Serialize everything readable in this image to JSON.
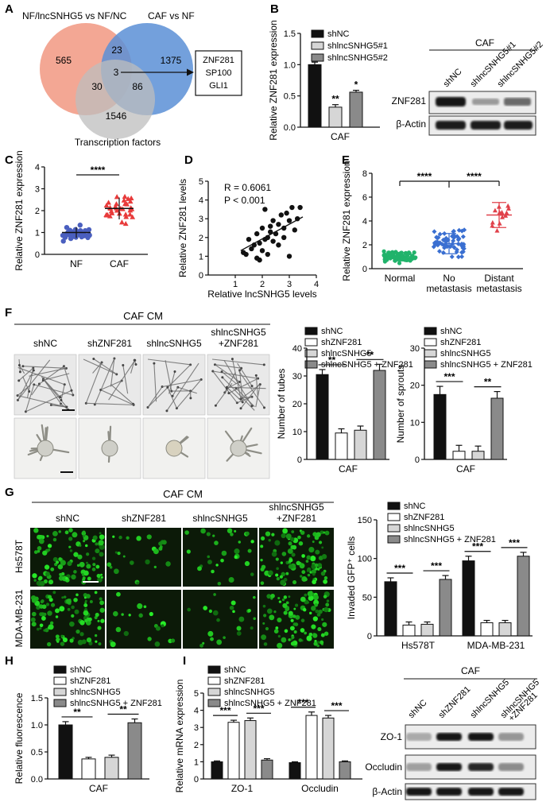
{
  "panel_letters": [
    "A",
    "B",
    "C",
    "D",
    "E",
    "F",
    "G",
    "H",
    "I"
  ],
  "colors": {
    "black": "#111111",
    "white": "#ffffff",
    "light_gray": "#d6d6d6",
    "dark_gray": "#8a8a8a",
    "venn_red": "#f2a28e",
    "venn_blue": "#5b8fd6",
    "venn_gray": "#bdbdbd",
    "nf_blue": "#4a5fbf",
    "caf_red": "#e83a3a",
    "normal_green": "#21b36b",
    "nometa_blue": "#3a6fd1",
    "distant_red": "#e0414a"
  },
  "panel_a": {
    "sets": [
      "NF/lncSNHG5 vs NF/NC",
      "CAF vs NF",
      "Transcription factors"
    ],
    "counts": {
      "red_only": "565",
      "red_blue": "23",
      "blue_only": "1375",
      "center": "3",
      "red_gray": "30",
      "blue_gray": "86",
      "gray_only": "1546"
    },
    "genes": [
      "ZNF281",
      "SP100",
      "GLI1"
    ]
  },
  "panel_b": {
    "chart_data": {
      "type": "bar",
      "ylabel": "Relative  ZNF281 expression",
      "xlabel": "CAF",
      "ylim": [
        0,
        1.5
      ],
      "yticks": [
        "0.0",
        "0.5",
        "1.0",
        "1.5"
      ],
      "series": [
        {
          "name": "shNC",
          "value": 1.0,
          "err": 0.04
        },
        {
          "name": "shlncSNHG5#1",
          "value": 0.32,
          "err": 0.04
        },
        {
          "name": "shlncSNHG5#2",
          "value": 0.56,
          "err": 0.03
        }
      ],
      "sig": [
        "**",
        "*"
      ]
    },
    "blot": {
      "title": "CAF",
      "lanes": [
        "shNC",
        "shlncSNHG5#1",
        "shlncSNHG5#2"
      ],
      "rows": [
        "ZNF281",
        "β-Actin"
      ]
    }
  },
  "panel_c": {
    "chart_data": {
      "type": "scatter",
      "ylabel": "Relative  ZNF281 expression",
      "ylim": [
        0,
        4
      ],
      "yticks": [
        "0",
        "1",
        "2",
        "3",
        "4"
      ],
      "groups": [
        "NF",
        "CAF"
      ],
      "means": [
        1.0,
        2.1
      ],
      "sd": [
        0.25,
        0.5
      ],
      "sig": "****"
    }
  },
  "panel_d": {
    "chart_data": {
      "type": "scatter",
      "xlabel": "Relative lncSNHG5 levels",
      "ylabel": "Relative ZNF281 levels",
      "xlim": [
        0,
        4
      ],
      "ylim": [
        0,
        5
      ],
      "xticks": [
        "1",
        "2",
        "3",
        "4"
      ],
      "yticks": [
        "0",
        "1",
        "2",
        "3",
        "4",
        "5"
      ],
      "stats": [
        "R = 0.6061",
        "P < 0.001"
      ],
      "points": [
        [
          1.4,
          1.1
        ],
        [
          1.5,
          1.9
        ],
        [
          1.6,
          1.4
        ],
        [
          1.7,
          1.6
        ],
        [
          1.8,
          0.9
        ],
        [
          1.8,
          2.2
        ],
        [
          1.9,
          0.8
        ],
        [
          1.9,
          1.7
        ],
        [
          2.0,
          2.5
        ],
        [
          2.0,
          1.3
        ],
        [
          2.1,
          3.5
        ],
        [
          2.1,
          1.9
        ],
        [
          2.2,
          2.0
        ],
        [
          2.2,
          1.1
        ],
        [
          2.3,
          2.6
        ],
        [
          2.3,
          2.3
        ],
        [
          2.4,
          1.8
        ],
        [
          2.4,
          2.9
        ],
        [
          2.5,
          2.2
        ],
        [
          2.6,
          2.7
        ],
        [
          2.6,
          1.6
        ],
        [
          2.7,
          3.2
        ],
        [
          2.8,
          2.0
        ],
        [
          2.9,
          3.3
        ],
        [
          3.0,
          2.9
        ],
        [
          3.0,
          1.0
        ],
        [
          3.1,
          3.6
        ],
        [
          3.2,
          2.4
        ],
        [
          3.3,
          3.0
        ],
        [
          3.4,
          3.6
        ],
        [
          1.3,
          1.2
        ],
        [
          2.8,
          2.5
        ]
      ],
      "fit": [
        [
          1.2,
          1.3
        ],
        [
          3.5,
          3.1
        ]
      ]
    }
  },
  "panel_e": {
    "chart_data": {
      "type": "scatter",
      "ylabel": "Relative  ZNF281 expression",
      "ylim": [
        0,
        8
      ],
      "yticks": [
        "0",
        "2",
        "4",
        "6",
        "8"
      ],
      "groups": [
        "Normal",
        "No\nmetastasis",
        "Distant\nmetastasis"
      ],
      "group_lines": [
        [
          "Normal"
        ],
        [
          "No",
          "metastasis"
        ],
        [
          "Distant",
          "metastasis"
        ]
      ],
      "means": [
        1.0,
        2.1,
        4.5
      ],
      "sd": [
        0.35,
        0.85,
        1.05
      ],
      "sig": [
        "****",
        "****"
      ]
    }
  },
  "panel_f": {
    "title": "CAF CM",
    "cols": [
      "shNC",
      "shZNF281",
      "shlncSNHG5",
      "shlncSNHG5\n+ZNF281"
    ],
    "col_lines": [
      [
        "shNC"
      ],
      [
        "shZNF281"
      ],
      [
        "shlncSNHG5"
      ],
      [
        "shlncSNHG5",
        "+ZNF281"
      ]
    ],
    "legend": [
      "shNC",
      "shZNF281",
      "shlncSNHG5",
      "shlncSNHG5 + ZNF281"
    ],
    "tubes": {
      "chart_data": {
        "type": "bar",
        "ylabel": "Number of tubes",
        "xlabel": "CAF",
        "ylim": [
          0,
          40
        ],
        "yticks": [
          "0",
          "10",
          "20",
          "30",
          "40"
        ],
        "values": [
          30.5,
          9.5,
          10.5,
          32
        ],
        "err": [
          1.8,
          1.5,
          1.5,
          2.2
        ],
        "sig": [
          "**",
          "**"
        ]
      }
    },
    "sprouts": {
      "chart_data": {
        "type": "bar",
        "ylabel": "Number of sprouts",
        "xlabel": "CAF",
        "ylim": [
          0,
          30
        ],
        "yticks": [
          "0",
          "10",
          "20",
          "30"
        ],
        "values": [
          17.5,
          2.2,
          2.2,
          16.5
        ],
        "err": [
          2.2,
          1.6,
          1.4,
          1.8
        ],
        "sig": [
          "***",
          "**"
        ]
      }
    }
  },
  "panel_g": {
    "title": "CAF CM",
    "cols": [
      "shNC",
      "shZNF281",
      "shlncSNHG5",
      "shlncSNHG5\n+ZNF281"
    ],
    "col_lines": [
      [
        "shNC"
      ],
      [
        "shZNF281"
      ],
      [
        "shlncSNHG5"
      ],
      [
        "shlncSNHG5",
        "+ZNF281"
      ]
    ],
    "rows": [
      "Hs578T",
      "MDA-MB-231"
    ],
    "legend": [
      "shNC",
      "shZNF281",
      "shlncSNHG5",
      "shlncSNHG5 + ZNF281"
    ],
    "chart_data": {
      "type": "bar",
      "ylabel": "Invaded GFP⁺ cells",
      "ylim": [
        0,
        150
      ],
      "yticks": [
        "0",
        "50",
        "100",
        "150"
      ],
      "categories": [
        "Hs578T",
        "MDA-MB-231"
      ],
      "series": [
        {
          "name": "shNC",
          "values": [
            70,
            97
          ]
        },
        {
          "name": "shZNF281",
          "values": [
            14,
            17
          ]
        },
        {
          "name": "shlncSNHG5",
          "values": [
            15,
            17
          ]
        },
        {
          "name": "shlncSNHG5 + ZNF281",
          "values": [
            73,
            103
          ]
        }
      ],
      "err": [
        [
          5,
          4,
          3,
          5
        ],
        [
          6,
          3,
          3,
          5
        ]
      ],
      "sig": [
        "***",
        "***",
        "***",
        "***"
      ]
    }
  },
  "panel_h": {
    "legend": [
      "shNC",
      "shZNF281",
      "shlncSNHG5",
      "shlncSNHG5 + ZNF281"
    ],
    "chart_data": {
      "type": "bar",
      "ylabel": "Relative  fluorescence",
      "xlabel": "CAF",
      "ylim": [
        0,
        1.5
      ],
      "yticks": [
        "0.0",
        "0.5",
        "1.0",
        "1.5"
      ],
      "values": [
        1.0,
        0.37,
        0.4,
        1.04
      ],
      "err": [
        0.06,
        0.03,
        0.04,
        0.07
      ],
      "sig": [
        "**",
        "**"
      ]
    }
  },
  "panel_i": {
    "legend": [
      "shNC",
      "shZNF281",
      "shlncSNHG5",
      "shlncSNHG5 + ZNF281"
    ],
    "chart_data": {
      "type": "bar",
      "ylabel": "Relative mRNA expression",
      "ylim": [
        0,
        5
      ],
      "yticks": [
        "0",
        "1",
        "2",
        "3",
        "4",
        "5"
      ],
      "categories": [
        "ZO-1",
        "Occludin"
      ],
      "series": [
        {
          "name": "shNC",
          "values": [
            1.0,
            0.95
          ]
        },
        {
          "name": "shZNF281",
          "values": [
            3.3,
            3.7
          ]
        },
        {
          "name": "shlncSNHG5",
          "values": [
            3.4,
            3.55
          ]
        },
        {
          "name": "shlncSNHG5 + ZNF281",
          "values": [
            1.1,
            1.0
          ]
        }
      ],
      "err": [
        [
          0.05,
          0.12,
          0.15,
          0.08
        ],
        [
          0.05,
          0.2,
          0.15,
          0.05
        ]
      ],
      "sig": [
        "***",
        "***",
        "***",
        "***"
      ]
    },
    "blot": {
      "title": "CAF",
      "lanes": [
        "shNC",
        "shZNF281",
        "shlncSNHG5",
        "shlncSNHG5\n+ZNF281"
      ],
      "lane_lines": [
        [
          "shNC"
        ],
        [
          "shZNF281"
        ],
        [
          "shlncSNHG5"
        ],
        [
          "shlncSNHG5",
          "+ZNF281"
        ]
      ],
      "rows": [
        "ZO-1",
        "Occludin",
        "β-Actin"
      ]
    }
  }
}
